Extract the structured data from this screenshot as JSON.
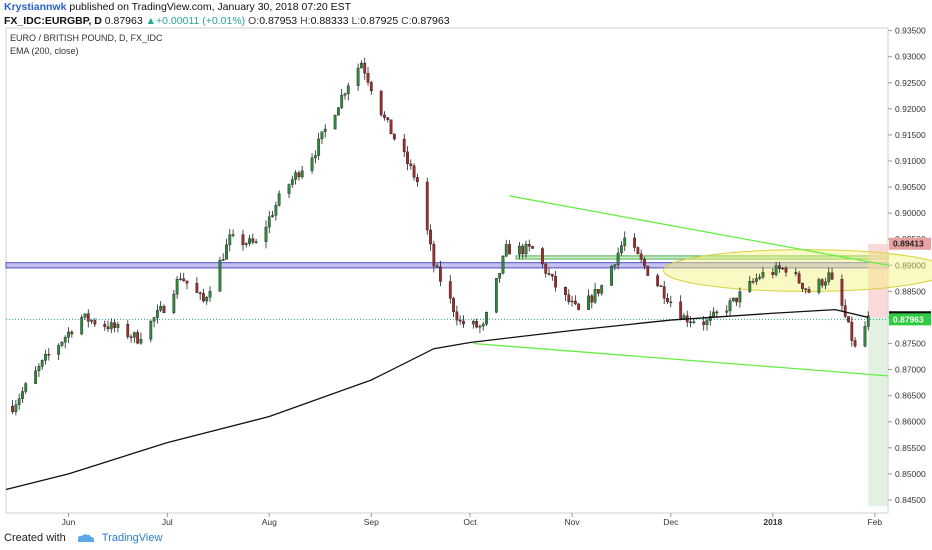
{
  "header": {
    "author": "Krystiannwk",
    "published_text": "published on TradingView.com, January 30, 2018 07:20 EST",
    "symbol": "FX_IDC:EURGBP, D",
    "last": "0.87963",
    "change_arrow": "▲",
    "change": "+0.00011 (+0.01%)",
    "o_label": "O:",
    "o": "0.87953",
    "h_label": "H:",
    "h": "0.88333",
    "l_label": "L:",
    "l": "0.87925",
    "c_label": "C:",
    "c": "0.87963"
  },
  "series_title": "EURO / BRITISH POUND, D, FX_IDC",
  "indicator": "EMA (200, close)",
  "footer": {
    "created_with": "Created with",
    "brand": "TradingView"
  },
  "colors": {
    "up": "#26a69a",
    "down": "#ef5350",
    "candle_up": "#2e8b3a",
    "candle_down": "#a32b2b",
    "ema": "#111111",
    "channel": "#66ee44",
    "band": "#5050c8",
    "ellipse": "#f7f27a"
  },
  "chart_data": {
    "type": "candlestick",
    "x_axis_labels": [
      "Jun",
      "Jul",
      "Aug",
      "Sep",
      "Oct",
      "Nov",
      "Dec",
      "2018",
      "Feb"
    ],
    "y_axis_labels": [
      "0.93500",
      "0.93000",
      "0.92500",
      "0.92000",
      "0.91500",
      "0.91000",
      "0.90500",
      "0.90000",
      "0.89500",
      "0.89000",
      "0.88500",
      "0.88000",
      "0.87500",
      "0.87000",
      "0.86500",
      "0.86000",
      "0.85500",
      "0.85000",
      "0.84500"
    ],
    "ylim": [
      0.8425,
      0.9355
    ],
    "date_range": [
      "2017-05-13",
      "2018-02-05"
    ],
    "price_tags": [
      {
        "value": 0.89413,
        "label": "0.89413",
        "color": "#e8a0a0"
      },
      {
        "value": 0.88004,
        "label": "0.88004",
        "color": "#111111"
      },
      {
        "value": 0.87963,
        "label": "0.87963",
        "color": "#2ecc40"
      }
    ],
    "horizontal_bands": [
      {
        "from": 0.8895,
        "to": 0.8905
      },
      {
        "from": 0.8912,
        "to": 0.8918
      }
    ],
    "channel_lines": [
      {
        "from": [
          "2017-10-13",
          0.9033
        ],
        "to": [
          "2018-02-05",
          0.89
        ]
      },
      {
        "from": [
          "2017-10-02",
          0.875
        ],
        "to": [
          "2018-02-05",
          0.8688
        ]
      }
    ],
    "ellipse": {
      "center": [
        "2018-01-11",
        0.889
      ],
      "rx_days": 12,
      "ry": 0.004
    },
    "ema_200": [
      [
        "2017-05-13",
        0.847
      ],
      [
        "2017-06-01",
        0.85
      ],
      [
        "2017-07-01",
        0.856
      ],
      [
        "2017-08-01",
        0.861
      ],
      [
        "2017-09-01",
        0.868
      ],
      [
        "2017-09-20",
        0.874
      ],
      [
        "2017-10-01",
        0.8752
      ],
      [
        "2017-11-01",
        0.8775
      ],
      [
        "2017-12-01",
        0.8795
      ],
      [
        "2018-01-01",
        0.8808
      ],
      [
        "2018-01-20",
        0.8815
      ],
      [
        "2018-01-30",
        0.88
      ]
    ],
    "anchors": [
      [
        "2017-05-15",
        0.863
      ],
      [
        "2017-05-25",
        0.872
      ],
      [
        "2017-06-05",
        0.88
      ],
      [
        "2017-06-15",
        0.878
      ],
      [
        "2017-06-22",
        0.876
      ],
      [
        "2017-06-30",
        0.882
      ],
      [
        "2017-07-05",
        0.888
      ],
      [
        "2017-07-12",
        0.883
      ],
      [
        "2017-07-20",
        0.895
      ],
      [
        "2017-07-28",
        0.894
      ],
      [
        "2017-08-05",
        0.904
      ],
      [
        "2017-08-15",
        0.912
      ],
      [
        "2017-08-25",
        0.925
      ],
      [
        "2017-08-29",
        0.929
      ],
      [
        "2017-09-05",
        0.918
      ],
      [
        "2017-09-15",
        0.906
      ],
      [
        "2017-09-20",
        0.89
      ],
      [
        "2017-09-28",
        0.879
      ],
      [
        "2017-10-05",
        0.878
      ],
      [
        "2017-10-12",
        0.893
      ],
      [
        "2017-10-20",
        0.893
      ],
      [
        "2017-10-28",
        0.885
      ],
      [
        "2017-11-03",
        0.881
      ],
      [
        "2017-11-10",
        0.886
      ],
      [
        "2017-11-17",
        0.895
      ],
      [
        "2017-11-25",
        0.888
      ],
      [
        "2017-12-05",
        0.88
      ],
      [
        "2017-12-12",
        0.879
      ],
      [
        "2017-12-20",
        0.883
      ],
      [
        "2017-12-28",
        0.888
      ],
      [
        "2018-01-05",
        0.8895
      ],
      [
        "2018-01-12",
        0.885
      ],
      [
        "2018-01-18",
        0.888
      ],
      [
        "2018-01-22",
        0.882
      ],
      [
        "2018-01-26",
        0.874
      ],
      [
        "2018-01-30",
        0.8796
      ]
    ]
  }
}
